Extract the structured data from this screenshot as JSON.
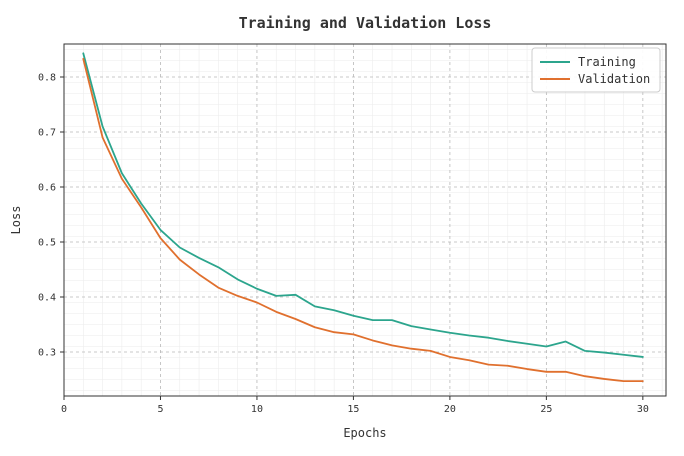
{
  "chart_data": {
    "type": "line",
    "title": "Training and Validation Loss",
    "xlabel": "Epochs",
    "ylabel": "Loss",
    "xlim": [
      0,
      31.2
    ],
    "ylim": [
      0.22,
      0.86
    ],
    "xticks": [
      0,
      5,
      10,
      15,
      20,
      25,
      30
    ],
    "yticks": [
      0.3,
      0.4,
      0.5,
      0.6,
      0.7,
      0.8
    ],
    "grid": true,
    "minor_grid": true,
    "legend_position": "top-right",
    "x": [
      1,
      2,
      3,
      4,
      5,
      6,
      7,
      8,
      9,
      10,
      11,
      12,
      13,
      14,
      15,
      16,
      17,
      18,
      19,
      20,
      21,
      22,
      23,
      24,
      25,
      26,
      27,
      28,
      29,
      30
    ],
    "series": [
      {
        "name": "Training",
        "color": "#2ca58d",
        "values": [
          0.843,
          0.71,
          0.625,
          0.57,
          0.522,
          0.49,
          0.471,
          0.454,
          0.432,
          0.415,
          0.402,
          0.404,
          0.383,
          0.376,
          0.366,
          0.358,
          0.358,
          0.347,
          0.341,
          0.335,
          0.33,
          0.326,
          0.32,
          0.315,
          0.31,
          0.319,
          0.302,
          0.299,
          0.295,
          0.291
        ]
      },
      {
        "name": "Validation",
        "color": "#e0702e",
        "values": [
          0.833,
          0.69,
          0.615,
          0.563,
          0.507,
          0.468,
          0.441,
          0.417,
          0.402,
          0.39,
          0.373,
          0.36,
          0.345,
          0.336,
          0.332,
          0.321,
          0.312,
          0.306,
          0.302,
          0.291,
          0.285,
          0.277,
          0.275,
          0.269,
          0.264,
          0.264,
          0.256,
          0.251,
          0.247,
          0.247
        ]
      }
    ]
  }
}
